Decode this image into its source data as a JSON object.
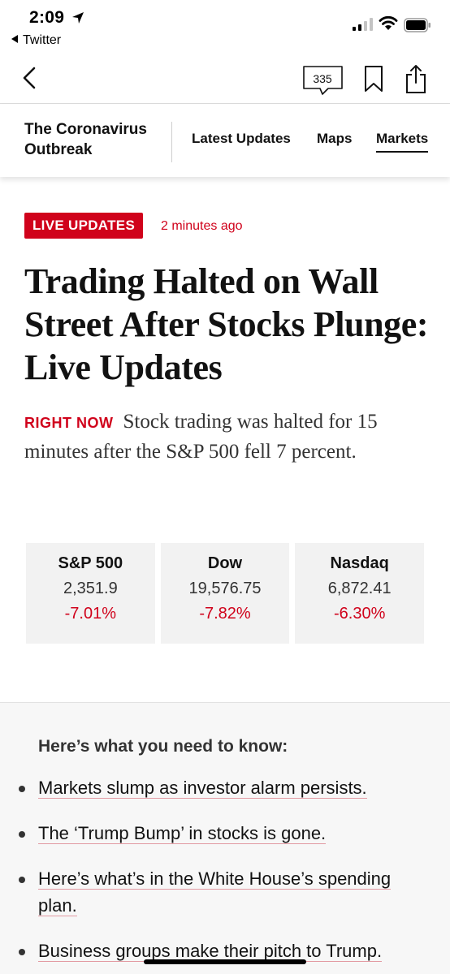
{
  "status_bar": {
    "time": "2:09",
    "back_app": "Twitter",
    "icons": [
      "location-arrow-icon",
      "cellular-signal-icon",
      "wifi-icon",
      "battery-icon"
    ]
  },
  "toolbar": {
    "icons": [
      "chevron-left-icon",
      "comment-bubble-icon",
      "bookmark-icon",
      "share-icon"
    ],
    "comments_count": "335"
  },
  "section_nav": {
    "title": "The Coronavirus Outbreak",
    "links": [
      "Latest Updates",
      "Maps",
      "Markets"
    ],
    "active": "Markets"
  },
  "article": {
    "badge": "LIVE UPDATES",
    "timestamp": "2 minutes ago",
    "headline": "Trading Halted on Wall Street After Stocks Plunge: Live Updates",
    "right_now_label": "RIGHT NOW",
    "summary": "Stock trading was halted for 15 minutes after the S&P 500 fell 7 percent."
  },
  "markets": [
    {
      "name": "S&P 500",
      "value": "2,351.9",
      "change": "-7.01%"
    },
    {
      "name": "Dow",
      "value": "19,576.75",
      "change": "-7.82%"
    },
    {
      "name": "Nasdaq",
      "value": "6,872.41",
      "change": "-6.30%"
    }
  ],
  "need_to_know": {
    "title": "Here’s what you need to know:",
    "items": [
      "Markets slump as investor alarm persists.",
      "The ‘Trump Bump’ in stocks is gone.",
      "Here’s what’s in the White House’s spending plan.",
      "Business groups make their pitch to Trump."
    ]
  },
  "colors": {
    "accent_red": "#d0021b",
    "text": "#121212",
    "tile_bg": "#f2f2f2",
    "box_bg": "#f7f7f7"
  }
}
